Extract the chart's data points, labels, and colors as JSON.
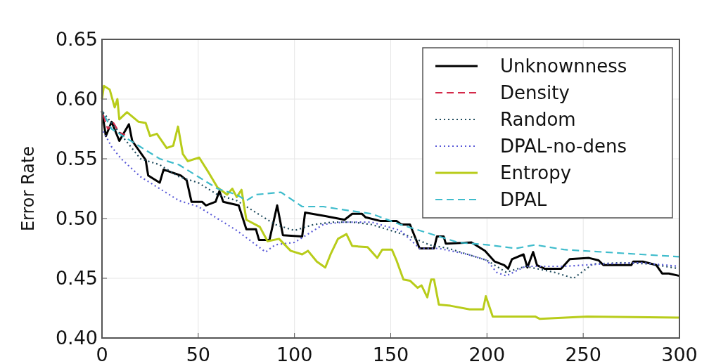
{
  "chart_data": {
    "type": "line",
    "ylabel": "Error Rate",
    "xlim": [
      0,
      300
    ],
    "ylim": [
      0.4,
      0.65
    ],
    "xticks": [
      0,
      50,
      100,
      150,
      200,
      250,
      300
    ],
    "yticks": [
      {
        "value": 0.4,
        "label": "0.40"
      },
      {
        "value": 0.45,
        "label": "0.45"
      },
      {
        "value": 0.5,
        "label": "0.50"
      },
      {
        "value": 0.55,
        "label": "0.55"
      },
      {
        "value": 0.6,
        "label": "0.60"
      },
      {
        "value": 0.65,
        "label": "0.65"
      }
    ],
    "grid": true,
    "legend": "top right",
    "series": [
      {
        "name": "Unknownness",
        "color": "#000000",
        "line_style": "solid",
        "x": [
          0,
          2,
          5,
          9,
          14,
          15.7,
          22.7,
          24,
          30,
          32,
          41,
          44,
          46.5,
          52,
          54,
          59,
          61,
          63,
          71,
          75,
          80,
          81.6,
          87,
          91,
          94,
          104,
          105.5,
          116,
          126,
          130,
          135,
          137,
          144.5,
          153,
          155.5,
          160,
          165,
          172.5,
          174,
          177.5,
          178.6,
          192,
          199,
          204,
          209,
          211,
          213,
          219,
          221,
          224,
          226,
          230,
          238.5,
          243,
          253,
          258,
          260.5,
          275,
          276,
          281,
          288,
          291,
          294.5,
          300
        ],
        "values": [
          0.59,
          0.569,
          0.581,
          0.565,
          0.579,
          0.565,
          0.549,
          0.536,
          0.53,
          0.541,
          0.536,
          0.532,
          0.514,
          0.514,
          0.511,
          0.514,
          0.523,
          0.514,
          0.511,
          0.491,
          0.491,
          0.482,
          0.482,
          0.511,
          0.486,
          0.485,
          0.505,
          0.502,
          0.499,
          0.504,
          0.504,
          0.501,
          0.498,
          0.498,
          0.495,
          0.495,
          0.475,
          0.475,
          0.485,
          0.485,
          0.479,
          0.48,
          0.473,
          0.464,
          0.461,
          0.458,
          0.466,
          0.47,
          0.459,
          0.472,
          0.461,
          0.458,
          0.458,
          0.466,
          0.467,
          0.465,
          0.461,
          0.461,
          0.464,
          0.464,
          0.461,
          0.454,
          0.454,
          0.452
        ]
      },
      {
        "name": "Density",
        "color": "#d42a4a",
        "line_style": "dashed",
        "x": [
          0,
          3,
          6,
          9,
          12
        ],
        "values": [
          0.59,
          0.575,
          0.58,
          0.572,
          0.57
        ]
      },
      {
        "name": "Random",
        "color": "#1e4a5c",
        "line_style": "dotted",
        "x": [
          0,
          10,
          20,
          30,
          40,
          50,
          60,
          70,
          80,
          90,
          100,
          110,
          120,
          130,
          140,
          150,
          160,
          170,
          180,
          190,
          200,
          210,
          220,
          235,
          245,
          255,
          270,
          285,
          300
        ],
        "values": [
          0.59,
          0.57,
          0.55,
          0.545,
          0.535,
          0.53,
          0.52,
          0.515,
          0.505,
          0.495,
          0.49,
          0.495,
          0.497,
          0.497,
          0.495,
          0.49,
          0.485,
          0.478,
          0.475,
          0.47,
          0.465,
          0.455,
          0.46,
          0.455,
          0.45,
          0.462,
          0.463,
          0.462,
          0.458
        ]
      },
      {
        "name": "DPAL-no-dens",
        "color": "#5a5ad8",
        "line_style": "dotted",
        "x": [
          0,
          5,
          10,
          20,
          30,
          40,
          50,
          60,
          70,
          80,
          85,
          90,
          100,
          105,
          110,
          115,
          125,
          140,
          155,
          165,
          175,
          190,
          200,
          205,
          210,
          220,
          240,
          260,
          280,
          300
        ],
        "values": [
          0.575,
          0.56,
          0.55,
          0.535,
          0.525,
          0.515,
          0.51,
          0.5,
          0.49,
          0.478,
          0.472,
          0.478,
          0.48,
          0.485,
          0.49,
          0.495,
          0.497,
          0.497,
          0.49,
          0.475,
          0.475,
          0.47,
          0.465,
          0.455,
          0.452,
          0.46,
          0.46,
          0.462,
          0.463,
          0.46
        ]
      },
      {
        "name": "Entropy",
        "color": "#b8cc1a",
        "line_style": "solid",
        "x": [
          0,
          1,
          4,
          6.6,
          8,
          9,
          13,
          19,
          22.7,
          25,
          28.5,
          33.6,
          37,
          39.5,
          42,
          44.6,
          50.5,
          55.6,
          60,
          65,
          67.7,
          70,
          72.5,
          75,
          82,
          86,
          92,
          98,
          104,
          107,
          111.6,
          116,
          119,
          122.6,
          127,
          130,
          138,
          143,
          145.6,
          150.6,
          153,
          156.6,
          160,
          164,
          166,
          169,
          171,
          172.5,
          175,
          181,
          191,
          198,
          199.4,
          203,
          225,
          227.5,
          252,
          300
        ],
        "values": [
          0.6,
          0.611,
          0.608,
          0.593,
          0.6,
          0.583,
          0.589,
          0.581,
          0.58,
          0.569,
          0.571,
          0.559,
          0.561,
          0.577,
          0.554,
          0.548,
          0.551,
          0.538,
          0.526,
          0.52,
          0.525,
          0.518,
          0.524,
          0.499,
          0.493,
          0.481,
          0.483,
          0.473,
          0.47,
          0.473,
          0.464,
          0.459,
          0.471,
          0.483,
          0.487,
          0.477,
          0.476,
          0.467,
          0.474,
          0.474,
          0.465,
          0.449,
          0.448,
          0.442,
          0.444,
          0.434,
          0.449,
          0.449,
          0.428,
          0.427,
          0.424,
          0.424,
          0.435,
          0.418,
          0.418,
          0.416,
          0.418,
          0.417
        ]
      },
      {
        "name": "DPAL",
        "color": "#3fbccc",
        "line_style": "dashed",
        "x": [
          0,
          5,
          10,
          20,
          30,
          40,
          50,
          60,
          70,
          75,
          80,
          93,
          104,
          115,
          122.7,
          140,
          155,
          165,
          175,
          185,
          200,
          215,
          225,
          240,
          260,
          280,
          300
        ],
        "values": [
          0.59,
          0.575,
          0.57,
          0.56,
          0.55,
          0.545,
          0.535,
          0.525,
          0.52,
          0.515,
          0.52,
          0.522,
          0.51,
          0.51,
          0.508,
          0.504,
          0.495,
          0.49,
          0.485,
          0.48,
          0.478,
          0.475,
          0.478,
          0.474,
          0.472,
          0.47,
          0.468
        ]
      }
    ]
  }
}
